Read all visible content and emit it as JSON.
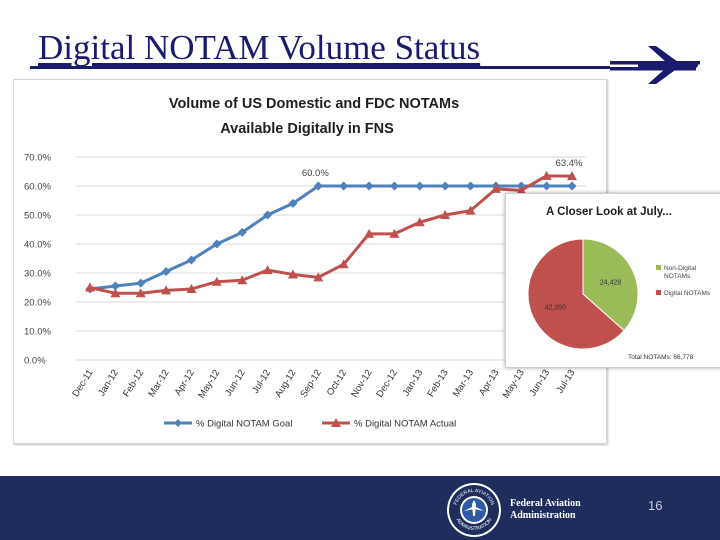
{
  "slide": {
    "title": "Digital NOTAM Volume Status",
    "page_number": "16",
    "agency_line1": "Federal Aviation",
    "agency_line2": "Administration",
    "seal_top_text": "FEDERAL AVIATION",
    "seal_bottom_text": "ADMINISTRATION",
    "colors": {
      "title": "#1a1a6e",
      "footer": "#1f2d5c"
    }
  },
  "chart_data": [
    {
      "type": "line",
      "title_line1": "Volume of US Domestic and FDC NOTAMs",
      "title_line2": "Available Digitally in FNS",
      "categories": [
        "Dec-11",
        "Jan-12",
        "Feb-12",
        "Mar-12",
        "Apr-12",
        "May-12",
        "Jun-12",
        "Jul-12",
        "Aug-12",
        "Sep-12",
        "Oct-12",
        "Nov-12",
        "Dec-12",
        "Jan-13",
        "Feb-13",
        "Mar-13",
        "Apr-13",
        "May-13",
        "Jun-13",
        "Jul-13"
      ],
      "y_ticks": [
        "0.0%",
        "10.0%",
        "20.0%",
        "30.0%",
        "40.0%",
        "50.0%",
        "60.0%",
        "70.0%"
      ],
      "ylim": [
        0,
        70
      ],
      "grid": true,
      "legend_position": "bottom",
      "series": [
        {
          "name": "% Digital NOTAM Goal",
          "color": "#4f81bd",
          "marker": "diamond",
          "values": [
            24.5,
            25.5,
            26.5,
            30.5,
            34.5,
            40,
            44,
            50,
            54,
            60,
            60,
            60,
            60,
            60,
            60,
            60,
            60,
            60,
            60,
            60
          ]
        },
        {
          "name": "% Digital NOTAM Actual",
          "color": "#c0504d",
          "marker": "triangle",
          "values": [
            25,
            23,
            23,
            24,
            24.5,
            27,
            27.5,
            31,
            29.5,
            28.5,
            33,
            43.5,
            43.5,
            47.5,
            50,
            51.5,
            59,
            58.5,
            63.5,
            63.4
          ]
        }
      ],
      "annotations": [
        {
          "label": "60.0%",
          "category": "Sep-12",
          "value": 60
        },
        {
          "label": "63.4%",
          "category": "Jul-13",
          "value": 63.4
        }
      ]
    },
    {
      "type": "pie",
      "title": "A Closer Look at July...",
      "slices": [
        {
          "name": "Non-Digital NOTAMs",
          "value": 24428,
          "label": "24,428",
          "color": "#9bbb59"
        },
        {
          "name": "Digital NOTAMs",
          "value": 42350,
          "label": "42,350",
          "color": "#c0504d"
        }
      ],
      "legend_position": "right",
      "total_label": "Total NOTAMs: 66,778"
    }
  ]
}
